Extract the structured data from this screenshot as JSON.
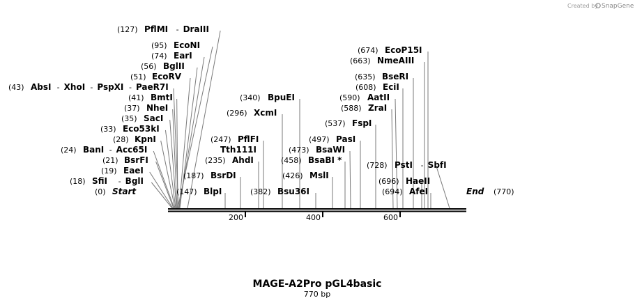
{
  "credit": {
    "created_by": "Created by",
    "brand": "SnapGene"
  },
  "map": {
    "title": "MAGE-A2Pro pGL4basic",
    "length_label": "770 bp",
    "length": 770,
    "start_label": "Start",
    "start_pos": "(0)",
    "end_label": "End",
    "end_pos": "(770)",
    "ticks": [
      "200",
      "400",
      "600"
    ]
  },
  "sites": [
    {
      "pos": "(127)",
      "names": [
        "PflMI",
        "DraIII"
      ],
      "cut": 127
    },
    {
      "pos": "(95)",
      "names": [
        "EcoNI"
      ],
      "cut": 95
    },
    {
      "pos": "(74)",
      "names": [
        "EarI"
      ],
      "cut": 74
    },
    {
      "pos": "(56)",
      "names": [
        "BglII"
      ],
      "cut": 56
    },
    {
      "pos": "(51)",
      "names": [
        "EcoRV"
      ],
      "cut": 51
    },
    {
      "pos": "(43)",
      "names": [
        "AbsI",
        "XhoI",
        "PspXI",
        "PaeR7I"
      ],
      "cut": 43
    },
    {
      "pos": "(41)",
      "names": [
        "BmtI"
      ],
      "cut": 41
    },
    {
      "pos": "(37)",
      "names": [
        "NheI"
      ],
      "cut": 37
    },
    {
      "pos": "(35)",
      "names": [
        "SacI"
      ],
      "cut": 35
    },
    {
      "pos": "(33)",
      "names": [
        "Eco53kI"
      ],
      "cut": 33
    },
    {
      "pos": "(28)",
      "names": [
        "KpnI"
      ],
      "cut": 28
    },
    {
      "pos": "(24)",
      "names": [
        "BanI",
        "Acc65I"
      ],
      "cut": 24
    },
    {
      "pos": "(21)",
      "names": [
        "BsrFI"
      ],
      "cut": 21
    },
    {
      "pos": "(19)",
      "names": [
        "EaeI"
      ],
      "cut": 19
    },
    {
      "pos": "(18)",
      "names": [
        "SfiI",
        "BglI"
      ],
      "cut": 18
    },
    {
      "pos": "(340)",
      "names": [
        "BpuEI"
      ],
      "cut": 340
    },
    {
      "pos": "(296)",
      "names": [
        "XcmI"
      ],
      "cut": 296
    },
    {
      "pos": "(247)",
      "names": [
        "PflFI"
      ],
      "cut": 247
    },
    {
      "pos": "",
      "names": [
        "Tth111I"
      ],
      "cut": 247
    },
    {
      "pos": "(235)",
      "names": [
        "AhdI"
      ],
      "cut": 235
    },
    {
      "pos": "(187)",
      "names": [
        "BsrDI"
      ],
      "cut": 187
    },
    {
      "pos": "(147)",
      "names": [
        "BlpI"
      ],
      "cut": 147
    },
    {
      "pos": "(382)",
      "names": [
        "Bsu36I"
      ],
      "cut": 382
    },
    {
      "pos": "(426)",
      "names": [
        "MslI"
      ],
      "cut": 426
    },
    {
      "pos": "(458)",
      "names": [
        "BsaBI *"
      ],
      "cut": 458
    },
    {
      "pos": "(473)",
      "names": [
        "BsaWI"
      ],
      "cut": 473
    },
    {
      "pos": "(497)",
      "names": [
        "PasI"
      ],
      "cut": 497
    },
    {
      "pos": "(537)",
      "names": [
        "FspI"
      ],
      "cut": 537
    },
    {
      "pos": "(588)",
      "names": [
        "ZraI"
      ],
      "cut": 588
    },
    {
      "pos": "(590)",
      "names": [
        "AatII"
      ],
      "cut": 590
    },
    {
      "pos": "(608)",
      "names": [
        "EciI"
      ],
      "cut": 608
    },
    {
      "pos": "(635)",
      "names": [
        "BseRI"
      ],
      "cut": 635
    },
    {
      "pos": "(663)",
      "names": [
        "NmeAIII"
      ],
      "cut": 663
    },
    {
      "pos": "(674)",
      "names": [
        "EcoP15I"
      ],
      "cut": 674
    },
    {
      "pos": "(728)",
      "names": [
        "PstI",
        "SbfI"
      ],
      "cut": 728
    },
    {
      "pos": "(696)",
      "names": [
        "HaeII"
      ],
      "cut": 696
    },
    {
      "pos": "(694)",
      "names": [
        "AfeI"
      ],
      "cut": 694
    }
  ]
}
